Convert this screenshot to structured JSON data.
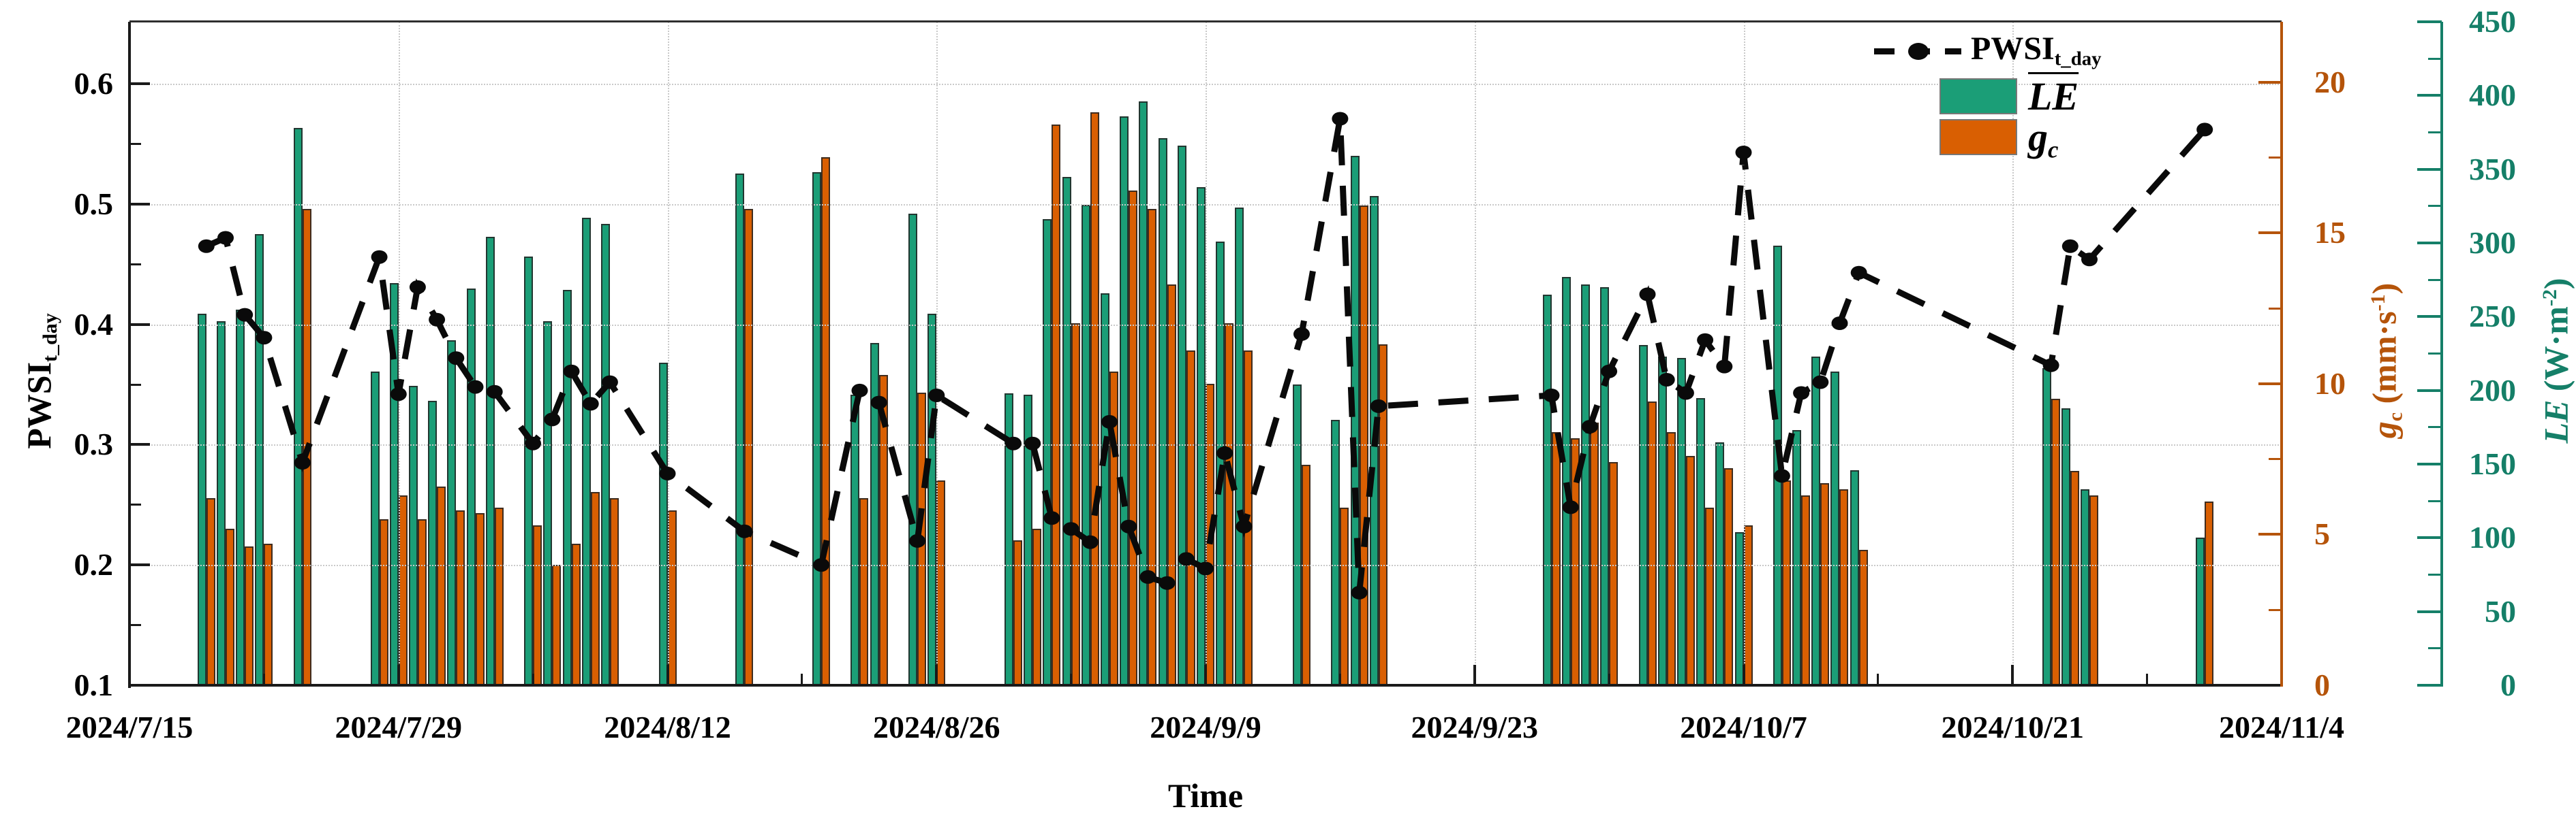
{
  "chart_data": {
    "type": "bar+line",
    "title": "",
    "layout": {
      "grid": "dotted horizontal and vertical at major ticks",
      "legend_position": "top-right inside plot"
    },
    "colors": {
      "le_bar": "#1b9e77",
      "gc_bar": "#d95f02",
      "gc_axis": "#b5540a",
      "le_axis": "#157f68",
      "pwsi_line": "#0a0a0a",
      "grid": "#c9c9c9",
      "frame": "#1a1a1a"
    },
    "legend": {
      "pwsi_base": "PWSI",
      "pwsi_sub": "t_day",
      "le_label": "LE",
      "gc_sym": "g",
      "gc_sub": "c"
    },
    "axes": {
      "left": {
        "title_base": "PWSI",
        "title_sub": "t_day",
        "min": 0.1,
        "max": 0.6516,
        "ticks": [
          {
            "label": "0.1",
            "v": 0.1
          },
          {
            "label": "0.2",
            "v": 0.2
          },
          {
            "label": "0.3",
            "v": 0.3
          },
          {
            "label": "0.4",
            "v": 0.4
          },
          {
            "label": "0.5",
            "v": 0.5
          },
          {
            "label": "0.6",
            "v": 0.6
          }
        ]
      },
      "bottom": {
        "title": "Time",
        "start": "2024/7/15",
        "end": "2024/11/4",
        "span_days": 112,
        "ticks": [
          "2024/7/15",
          "2024/7/29",
          "2024/8/12",
          "2024/8/26",
          "2024/9/9",
          "2024/9/23",
          "2024/10/7",
          "2024/10/21",
          "2024/11/4"
        ]
      },
      "gc": {
        "sym": "g",
        "sub": "c",
        "unit_pre": "(mm·s",
        "unit_exp": "-1",
        "unit_post": ")",
        "min": 0,
        "max": 22,
        "ticks": [
          {
            "label": "0",
            "v": 0
          },
          {
            "label": "5",
            "v": 5
          },
          {
            "label": "10",
            "v": 10
          },
          {
            "label": "15",
            "v": 15
          },
          {
            "label": "20",
            "v": 20
          }
        ]
      },
      "le": {
        "sym": "LE",
        "unit_pre": "(W·m",
        "unit_exp": "-2",
        "unit_post": ")",
        "min": 0,
        "max": 450,
        "ticks": [
          {
            "label": "0",
            "v": 0
          },
          {
            "label": "50",
            "v": 50
          },
          {
            "label": "100",
            "v": 100
          },
          {
            "label": "150",
            "v": 150
          },
          {
            "label": "200",
            "v": 200
          },
          {
            "label": "250",
            "v": 250
          },
          {
            "label": "300",
            "v": 300
          },
          {
            "label": "350",
            "v": 350
          },
          {
            "label": "400",
            "v": 400
          },
          {
            "label": "450",
            "v": 450
          }
        ]
      }
    },
    "series_meta": {
      "pwsi_t_day": {
        "type": "line",
        "style": "dashed with dot markers",
        "axis": "left"
      },
      "le": {
        "type": "bar",
        "axis": "le"
      },
      "gc": {
        "type": "bar",
        "axis": "gc"
      }
    },
    "records": [
      {
        "date": "2024/7/19",
        "pwsi": 0.465,
        "le": 252,
        "gc": 6.2
      },
      {
        "date": "2024/7/20",
        "pwsi": 0.472,
        "le": 247,
        "gc": 5.2
      },
      {
        "date": "2024/7/21",
        "pwsi": 0.408,
        "le": 255,
        "gc": 4.6
      },
      {
        "date": "2024/7/22",
        "pwsi": 0.389,
        "le": 306,
        "gc": 4.7
      },
      {
        "date": "2024/7/24",
        "pwsi": 0.285,
        "le": 378,
        "gc": 15.8
      },
      {
        "date": "2024/7/28",
        "pwsi": 0.456,
        "le": 213,
        "gc": 5.5
      },
      {
        "date": "2024/7/29",
        "pwsi": 0.342,
        "le": 273,
        "gc": 6.3
      },
      {
        "date": "2024/7/30",
        "pwsi": 0.431,
        "le": 203,
        "gc": 5.5
      },
      {
        "date": "2024/7/31",
        "pwsi": 0.404,
        "le": 193,
        "gc": 6.6
      },
      {
        "date": "2024/8/1",
        "pwsi": 0.372,
        "le": 234,
        "gc": 5.8
      },
      {
        "date": "2024/8/2",
        "pwsi": 0.348,
        "le": 269,
        "gc": 5.7
      },
      {
        "date": "2024/8/3",
        "pwsi": 0.344,
        "le": 304,
        "gc": 5.9
      },
      {
        "date": "2024/8/5",
        "pwsi": 0.301,
        "le": 291,
        "gc": 5.3
      },
      {
        "date": "2024/8/6",
        "pwsi": 0.321,
        "le": 247,
        "gc": 4.0
      },
      {
        "date": "2024/8/7",
        "pwsi": 0.361,
        "le": 268,
        "gc": 4.7
      },
      {
        "date": "2024/8/8",
        "pwsi": 0.334,
        "le": 317,
        "gc": 6.4
      },
      {
        "date": "2024/8/9",
        "pwsi": 0.352,
        "le": 313,
        "gc": 6.2
      },
      {
        "date": "2024/8/12",
        "pwsi": 0.276,
        "le": 219,
        "gc": 5.8
      },
      {
        "date": "2024/8/16",
        "pwsi": 0.228,
        "le": 347,
        "gc": 15.8
      },
      {
        "date": "2024/8/20",
        "pwsi": 0.2,
        "le": 348,
        "gc": 17.5
      },
      {
        "date": "2024/8/22",
        "pwsi": 0.345,
        "le": 197,
        "gc": 6.2
      },
      {
        "date": "2024/8/23",
        "pwsi": 0.335,
        "le": 232,
        "gc": 10.3
      },
      {
        "date": "2024/8/25",
        "pwsi": 0.22,
        "le": 320,
        "gc": 9.7
      },
      {
        "date": "2024/8/26",
        "pwsi": 0.341,
        "le": 252,
        "gc": 6.8
      },
      {
        "date": "2024/8/30",
        "pwsi": 0.301,
        "le": 198,
        "gc": 4.8
      },
      {
        "date": "2024/8/31",
        "pwsi": 0.301,
        "le": 197,
        "gc": 5.2
      },
      {
        "date": "2024/9/1",
        "pwsi": 0.239,
        "le": 316,
        "gc": 18.6
      },
      {
        "date": "2024/9/2",
        "pwsi": 0.23,
        "le": 345,
        "gc": 12.0
      },
      {
        "date": "2024/9/3",
        "pwsi": 0.219,
        "le": 326,
        "gc": 19.0
      },
      {
        "date": "2024/9/4",
        "pwsi": 0.319,
        "le": 266,
        "gc": 10.4
      },
      {
        "date": "2024/9/5",
        "pwsi": 0.232,
        "le": 386,
        "gc": 16.4
      },
      {
        "date": "2024/9/6",
        "pwsi": 0.19,
        "le": 396,
        "gc": 15.8
      },
      {
        "date": "2024/9/7",
        "pwsi": 0.185,
        "le": 371,
        "gc": 13.3
      },
      {
        "date": "2024/9/8",
        "pwsi": 0.205,
        "le": 366,
        "gc": 11.1
      },
      {
        "date": "2024/9/9",
        "pwsi": 0.197,
        "le": 338,
        "gc": 10.0
      },
      {
        "date": "2024/9/10",
        "pwsi": 0.293,
        "le": 301,
        "gc": 12.0
      },
      {
        "date": "2024/9/11",
        "pwsi": 0.232,
        "le": 324,
        "gc": 11.1
      },
      {
        "date": "2024/9/14",
        "pwsi": 0.392,
        "le": 204,
        "gc": 7.3
      },
      {
        "date": "2024/9/16",
        "pwsi": 0.571,
        "le": 180,
        "gc": 5.9
      },
      {
        "date": "2024/9/17",
        "pwsi": 0.177,
        "le": 359,
        "gc": 15.9
      },
      {
        "date": "2024/9/18",
        "pwsi": 0.332,
        "le": 332,
        "gc": 11.3
      },
      {
        "date": "2024/9/27",
        "pwsi": 0.341,
        "le": 265,
        "gc": 8.4
      },
      {
        "date": "2024/9/28",
        "pwsi": 0.248,
        "le": 277,
        "gc": 8.2
      },
      {
        "date": "2024/9/29",
        "pwsi": 0.315,
        "le": 272,
        "gc": 8.7
      },
      {
        "date": "2024/9/30",
        "pwsi": 0.361,
        "le": 270,
        "gc": 7.4
      },
      {
        "date": "2024/10/2",
        "pwsi": 0.425,
        "le": 231,
        "gc": 9.4
      },
      {
        "date": "2024/10/3",
        "pwsi": 0.354,
        "le": 223,
        "gc": 8.4
      },
      {
        "date": "2024/10/4",
        "pwsi": 0.343,
        "le": 222,
        "gc": 7.6
      },
      {
        "date": "2024/10/5",
        "pwsi": 0.387,
        "le": 195,
        "gc": 5.9
      },
      {
        "date": "2024/10/6",
        "pwsi": 0.365,
        "le": 165,
        "gc": 7.2
      },
      {
        "date": "2024/10/7",
        "pwsi": 0.543,
        "le": 104,
        "gc": 5.3
      },
      {
        "date": "2024/10/9",
        "pwsi": 0.274,
        "le": 298,
        "gc": 6.8
      },
      {
        "date": "2024/10/10",
        "pwsi": 0.343,
        "le": 173,
        "gc": 6.3
      },
      {
        "date": "2024/10/11",
        "pwsi": 0.352,
        "le": 223,
        "gc": 6.7
      },
      {
        "date": "2024/10/12",
        "pwsi": 0.401,
        "le": 213,
        "gc": 6.5
      },
      {
        "date": "2024/10/13",
        "pwsi": 0.443,
        "le": 146,
        "gc": 4.5
      },
      {
        "date": "2024/10/23",
        "pwsi": 0.366,
        "le": 215,
        "gc": 9.5
      },
      {
        "date": "2024/10/24",
        "pwsi": 0.465,
        "le": 188,
        "gc": 7.1
      },
      {
        "date": "2024/10/25",
        "pwsi": 0.454,
        "le": 133,
        "gc": 6.3
      },
      {
        "date": "2024/10/31",
        "pwsi": 0.562,
        "le": 100,
        "gc": 6.1
      }
    ]
  }
}
